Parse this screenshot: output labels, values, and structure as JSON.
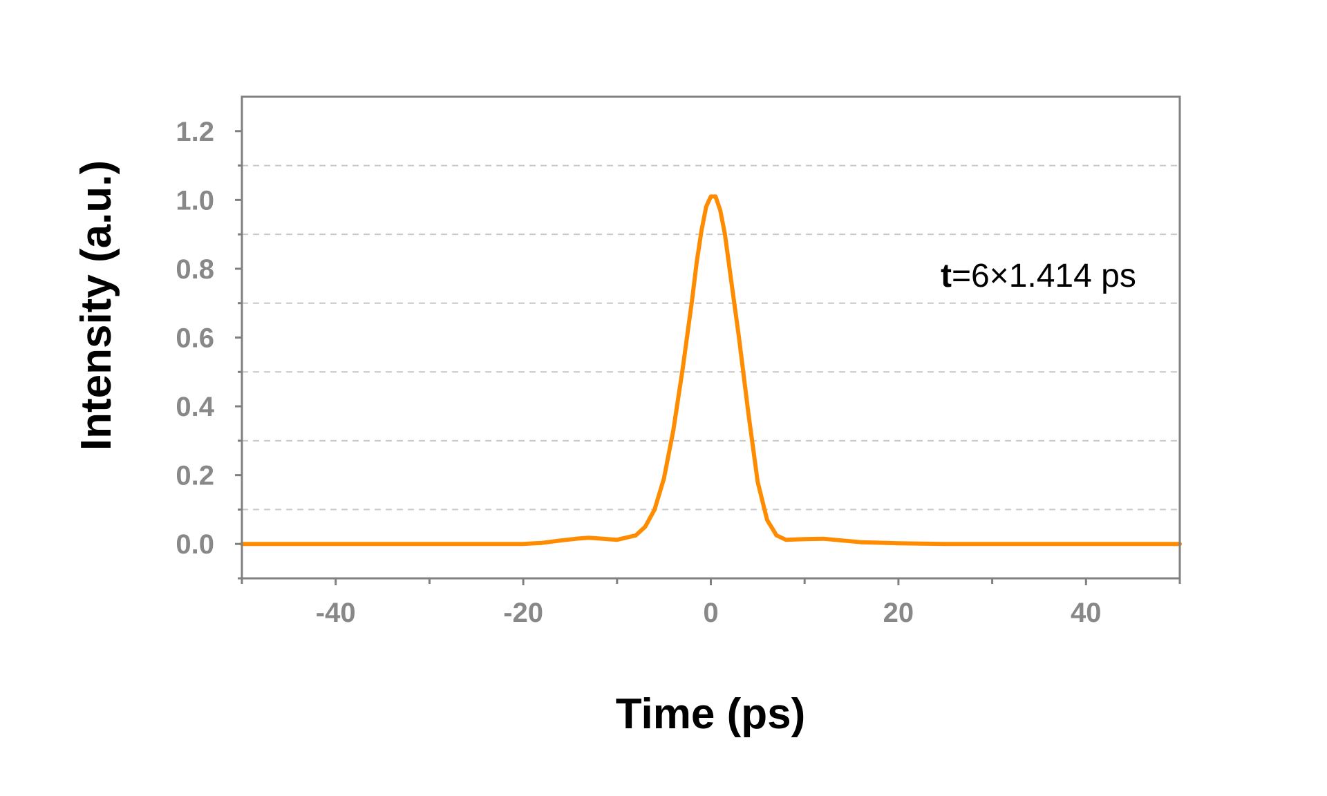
{
  "chart_data": {
    "type": "line",
    "title": "",
    "xlabel": "Time (ps)",
    "ylabel": "Intensity (a.u.)",
    "xlim": [
      -50,
      50
    ],
    "ylim": [
      -0.1,
      1.3
    ],
    "x_ticks": [
      -40,
      -20,
      0,
      20,
      40
    ],
    "x_tick_labels": [
      "-40",
      "-20",
      "0",
      "20",
      "40"
    ],
    "x_minor_ticks": [
      -50,
      -30,
      -10,
      10,
      30,
      50
    ],
    "y_ticks": [
      0.0,
      0.2,
      0.4,
      0.6,
      0.8,
      1.0,
      1.2
    ],
    "y_tick_labels": [
      "0.0",
      "0.2",
      "0.4",
      "0.6",
      "0.8",
      "1.0",
      "1.2"
    ],
    "y_minor_ticks": [
      -0.1,
      0.1,
      0.3,
      0.5,
      0.7,
      0.9,
      1.1
    ],
    "grid": {
      "horizontal_dashed_at": [
        0.1,
        0.3,
        0.5,
        0.7,
        0.9,
        1.1
      ]
    },
    "legend": "none",
    "series": [
      {
        "color": "#ff8c00",
        "x": [
          -50,
          -45,
          -40,
          -35,
          -30,
          -25,
          -20,
          -18,
          -16,
          -14,
          -13,
          -12,
          -10,
          -8,
          -7,
          -6,
          -5,
          -4,
          -3,
          -2,
          -1.5,
          -1,
          -0.5,
          0,
          0.5,
          1,
          1.5,
          2,
          3,
          4,
          5,
          6,
          7,
          8,
          10,
          12,
          14,
          16,
          20,
          25,
          30,
          40,
          50
        ],
        "y": [
          0.0,
          0.0,
          0.0,
          0.0,
          0.0,
          0.0,
          0.0,
          0.003,
          0.01,
          0.016,
          0.018,
          0.016,
          0.012,
          0.025,
          0.05,
          0.1,
          0.19,
          0.33,
          0.51,
          0.71,
          0.82,
          0.91,
          0.98,
          1.01,
          1.01,
          0.97,
          0.9,
          0.8,
          0.6,
          0.38,
          0.18,
          0.07,
          0.025,
          0.012,
          0.014,
          0.015,
          0.01,
          0.005,
          0.002,
          0.0,
          0.0,
          0.0,
          0.0
        ]
      }
    ],
    "annotations": [
      {
        "symbol": "t",
        "text": "=6×1.414 ps",
        "x": 24.5,
        "y": 0.78
      }
    ]
  }
}
